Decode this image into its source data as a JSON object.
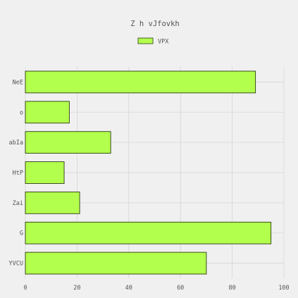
{
  "chart_data": {
    "type": "bar",
    "orientation": "horizontal",
    "title": "Z h  vJfovkh",
    "categories": [
      "NeE",
      "o",
      "abIa",
      "HtP",
      "Zai",
      "G",
      "YVCU"
    ],
    "series": [
      {
        "name": "VPX",
        "values": [
          89,
          17,
          33,
          15,
          21,
          95,
          70
        ]
      }
    ],
    "xlim": [
      0,
      100
    ],
    "xticks": [
      0,
      20,
      40,
      60,
      80,
      100
    ],
    "xlabel": "",
    "ylabel": "",
    "grid": true,
    "legend_position": "top-center",
    "colors": {
      "bar_fill": "#b3ff4d",
      "bar_stroke": "#2a3a10",
      "grid": "#d6d6d6",
      "text": "#555555",
      "background": "#f0f0f0"
    }
  }
}
